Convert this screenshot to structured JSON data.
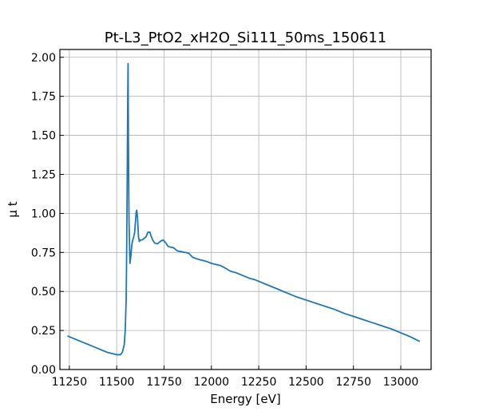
{
  "chart_data": {
    "type": "line",
    "title": "Pt-L3_PtO2_xH2O_Si111_50ms_150611",
    "xlabel": "Energy [eV]",
    "ylabel": "μ t",
    "xlim": [
      11200,
      13160
    ],
    "ylim": [
      0.0,
      2.05
    ],
    "xticks": [
      11250,
      11500,
      11750,
      12000,
      12250,
      12500,
      12750,
      13000
    ],
    "xtick_labels": [
      "11250",
      "11500",
      "11750",
      "12000",
      "12250",
      "12500",
      "12750",
      "13000"
    ],
    "yticks": [
      0.0,
      0.25,
      0.5,
      0.75,
      1.0,
      1.25,
      1.5,
      1.75,
      2.0
    ],
    "ytick_labels": [
      "0.00",
      "0.25",
      "0.50",
      "0.75",
      "1.00",
      "1.25",
      "1.50",
      "1.75",
      "2.00"
    ],
    "grid": true,
    "series": [
      {
        "color": "#1f77b4",
        "x": [
          11240,
          11300,
          11350,
          11400,
          11450,
          11500,
          11520,
          11530,
          11540,
          11545,
          11550,
          11553,
          11556,
          11558,
          11560,
          11562,
          11565,
          11570,
          11575,
          11580,
          11585,
          11590,
          11595,
          11600,
          11603,
          11606,
          11610,
          11615,
          11620,
          11625,
          11635,
          11645,
          11655,
          11665,
          11675,
          11680,
          11690,
          11700,
          11715,
          11730,
          11745,
          11760,
          11770,
          11780,
          11800,
          11820,
          11840,
          11860,
          11880,
          11900,
          11920,
          11950,
          11980,
          12000,
          12050,
          12080,
          12100,
          12130,
          12150,
          12200,
          12230,
          12260,
          12300,
          12350,
          12400,
          12450,
          12500,
          12550,
          12600,
          12650,
          12700,
          12750,
          12800,
          12850,
          12900,
          12950,
          13000,
          13050,
          13100
        ],
        "y": [
          0.215,
          0.185,
          0.16,
          0.135,
          0.11,
          0.095,
          0.095,
          0.11,
          0.16,
          0.25,
          0.45,
          0.8,
          1.3,
          1.7,
          1.96,
          1.45,
          0.95,
          0.68,
          0.73,
          0.8,
          0.83,
          0.85,
          0.88,
          0.96,
          1.01,
          1.02,
          0.97,
          0.85,
          0.82,
          0.83,
          0.83,
          0.84,
          0.85,
          0.88,
          0.88,
          0.86,
          0.83,
          0.81,
          0.805,
          0.82,
          0.83,
          0.81,
          0.79,
          0.785,
          0.78,
          0.76,
          0.755,
          0.75,
          0.745,
          0.72,
          0.71,
          0.7,
          0.69,
          0.68,
          0.665,
          0.645,
          0.63,
          0.62,
          0.61,
          0.585,
          0.575,
          0.56,
          0.54,
          0.515,
          0.49,
          0.465,
          0.445,
          0.425,
          0.405,
          0.385,
          0.36,
          0.34,
          0.32,
          0.3,
          0.28,
          0.26,
          0.235,
          0.21,
          0.18
        ]
      }
    ]
  }
}
